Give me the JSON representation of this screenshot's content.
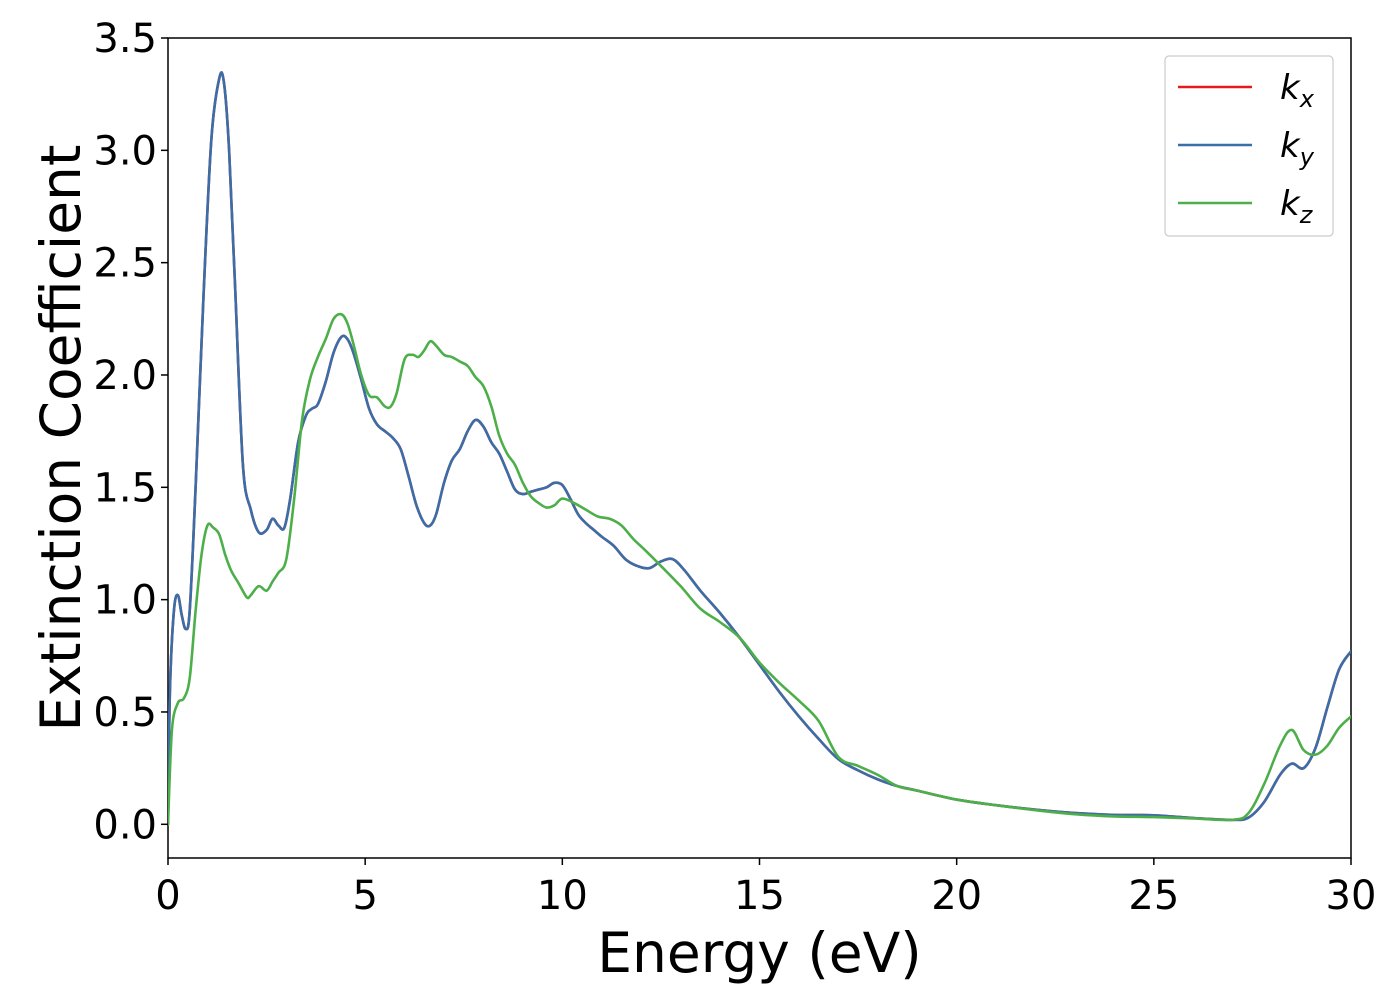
{
  "chart_data": {
    "type": "line",
    "title": "",
    "xlabel": "Energy (eV)",
    "ylabel": "Extinction Coefficient",
    "xlim": [
      0,
      30
    ],
    "ylim": [
      -0.15,
      3.5
    ],
    "xticks": [
      0,
      5,
      10,
      15,
      20,
      25,
      30
    ],
    "xtick_labels": [
      "0",
      "5",
      "10",
      "15",
      "20",
      "25",
      "30"
    ],
    "yticks": [
      0.0,
      0.5,
      1.0,
      1.5,
      2.0,
      2.5,
      3.0,
      3.5
    ],
    "ytick_labels": [
      "0.0",
      "0.5",
      "1.0",
      "1.5",
      "2.0",
      "2.5",
      "3.0",
      "3.5"
    ],
    "grid": false,
    "legend_position": "top-right",
    "series": [
      {
        "name": "k_x",
        "legend_main": "k",
        "legend_sub": "x",
        "color": "#e41a1c",
        "x": [
          0,
          0.05,
          0.15,
          0.25,
          0.35,
          0.45,
          0.55,
          0.7,
          0.9,
          1.1,
          1.3,
          1.42,
          1.55,
          1.7,
          1.9,
          2.1,
          2.3,
          2.5,
          2.65,
          2.8,
          2.95,
          3.1,
          3.3,
          3.5,
          3.65,
          3.8,
          4.0,
          4.2,
          4.4,
          4.55,
          4.7,
          4.9,
          5.1,
          5.3,
          5.5,
          5.7,
          5.9,
          6.1,
          6.3,
          6.5,
          6.65,
          6.8,
          7.0,
          7.2,
          7.4,
          7.6,
          7.8,
          8.0,
          8.2,
          8.4,
          8.6,
          8.8,
          9.0,
          9.2,
          9.4,
          9.6,
          9.8,
          10.0,
          10.2,
          10.4,
          10.6,
          10.8,
          11.0,
          11.3,
          11.6,
          11.9,
          12.2,
          12.5,
          12.8,
          13.1,
          13.5,
          14.0,
          14.5,
          15.0,
          15.5,
          16.0,
          16.5,
          17.0,
          17.5,
          18.0,
          18.5,
          19.0,
          20.0,
          21.0,
          22.0,
          23.0,
          24.0,
          25.0,
          26.0,
          27.0,
          27.4,
          27.8,
          28.2,
          28.5,
          28.8,
          29.1,
          29.4,
          29.7,
          30.0
        ],
        "values": [
          0.0,
          0.6,
          0.95,
          1.02,
          0.93,
          0.87,
          0.95,
          1.5,
          2.35,
          3.05,
          3.32,
          3.3,
          3.0,
          2.4,
          1.6,
          1.4,
          1.3,
          1.31,
          1.36,
          1.33,
          1.32,
          1.45,
          1.7,
          1.82,
          1.85,
          1.87,
          1.97,
          2.1,
          2.17,
          2.16,
          2.1,
          1.98,
          1.85,
          1.78,
          1.75,
          1.72,
          1.67,
          1.55,
          1.42,
          1.34,
          1.33,
          1.38,
          1.52,
          1.62,
          1.67,
          1.75,
          1.8,
          1.77,
          1.7,
          1.65,
          1.57,
          1.49,
          1.47,
          1.48,
          1.49,
          1.5,
          1.52,
          1.51,
          1.45,
          1.38,
          1.34,
          1.31,
          1.28,
          1.24,
          1.18,
          1.15,
          1.14,
          1.17,
          1.18,
          1.13,
          1.04,
          0.94,
          0.83,
          0.71,
          0.59,
          0.48,
          0.38,
          0.29,
          0.24,
          0.2,
          0.17,
          0.15,
          0.11,
          0.085,
          0.065,
          0.05,
          0.042,
          0.04,
          0.028,
          0.02,
          0.03,
          0.1,
          0.22,
          0.27,
          0.25,
          0.34,
          0.52,
          0.69,
          0.77
        ]
      },
      {
        "name": "k_y",
        "legend_main": "k",
        "legend_sub": "y",
        "color": "#3a6ea8",
        "x": [
          0,
          0.05,
          0.15,
          0.25,
          0.35,
          0.45,
          0.55,
          0.7,
          0.9,
          1.1,
          1.3,
          1.42,
          1.55,
          1.7,
          1.9,
          2.1,
          2.3,
          2.5,
          2.65,
          2.8,
          2.95,
          3.1,
          3.3,
          3.5,
          3.65,
          3.8,
          4.0,
          4.2,
          4.4,
          4.55,
          4.7,
          4.9,
          5.1,
          5.3,
          5.5,
          5.7,
          5.9,
          6.1,
          6.3,
          6.5,
          6.65,
          6.8,
          7.0,
          7.2,
          7.4,
          7.6,
          7.8,
          8.0,
          8.2,
          8.4,
          8.6,
          8.8,
          9.0,
          9.2,
          9.4,
          9.6,
          9.8,
          10.0,
          10.2,
          10.4,
          10.6,
          10.8,
          11.0,
          11.3,
          11.6,
          11.9,
          12.2,
          12.5,
          12.8,
          13.1,
          13.5,
          14.0,
          14.5,
          15.0,
          15.5,
          16.0,
          16.5,
          17.0,
          17.5,
          18.0,
          18.5,
          19.0,
          20.0,
          21.0,
          22.0,
          23.0,
          24.0,
          25.0,
          26.0,
          27.0,
          27.4,
          27.8,
          28.2,
          28.5,
          28.8,
          29.1,
          29.4,
          29.7,
          30.0
        ],
        "values": [
          0.0,
          0.6,
          0.95,
          1.02,
          0.93,
          0.87,
          0.95,
          1.5,
          2.35,
          3.05,
          3.32,
          3.3,
          3.0,
          2.4,
          1.6,
          1.4,
          1.3,
          1.31,
          1.36,
          1.33,
          1.32,
          1.45,
          1.7,
          1.82,
          1.85,
          1.87,
          1.97,
          2.1,
          2.17,
          2.16,
          2.1,
          1.98,
          1.85,
          1.78,
          1.75,
          1.72,
          1.67,
          1.55,
          1.42,
          1.34,
          1.33,
          1.38,
          1.52,
          1.62,
          1.67,
          1.75,
          1.8,
          1.77,
          1.7,
          1.65,
          1.57,
          1.49,
          1.47,
          1.48,
          1.49,
          1.5,
          1.52,
          1.51,
          1.45,
          1.38,
          1.34,
          1.31,
          1.28,
          1.24,
          1.18,
          1.15,
          1.14,
          1.17,
          1.18,
          1.13,
          1.04,
          0.94,
          0.83,
          0.71,
          0.59,
          0.48,
          0.38,
          0.29,
          0.24,
          0.2,
          0.17,
          0.15,
          0.11,
          0.085,
          0.065,
          0.05,
          0.042,
          0.04,
          0.028,
          0.02,
          0.03,
          0.1,
          0.22,
          0.27,
          0.25,
          0.34,
          0.52,
          0.69,
          0.77
        ]
      },
      {
        "name": "k_z",
        "legend_main": "k",
        "legend_sub": "z",
        "color": "#4daf4a",
        "x": [
          0,
          0.1,
          0.25,
          0.4,
          0.55,
          0.7,
          0.85,
          1.0,
          1.15,
          1.3,
          1.45,
          1.6,
          1.8,
          2.0,
          2.1,
          2.3,
          2.5,
          2.65,
          2.8,
          3.0,
          3.2,
          3.4,
          3.6,
          3.8,
          4.0,
          4.2,
          4.4,
          4.55,
          4.7,
          4.9,
          5.1,
          5.3,
          5.5,
          5.65,
          5.8,
          6.0,
          6.2,
          6.35,
          6.5,
          6.65,
          6.8,
          7.0,
          7.2,
          7.4,
          7.6,
          7.8,
          8.0,
          8.2,
          8.4,
          8.6,
          8.8,
          9.0,
          9.2,
          9.4,
          9.6,
          9.8,
          10.0,
          10.3,
          10.6,
          10.9,
          11.2,
          11.5,
          11.8,
          12.1,
          12.5,
          13.0,
          13.5,
          14.0,
          14.5,
          15.0,
          15.5,
          16.0,
          16.5,
          17.0,
          17.5,
          18.0,
          18.5,
          19.0,
          20.0,
          21.0,
          22.0,
          23.0,
          24.0,
          25.0,
          26.0,
          27.0,
          27.4,
          27.8,
          28.2,
          28.5,
          28.8,
          29.1,
          29.4,
          29.7,
          30.0
        ],
        "values": [
          0.0,
          0.42,
          0.54,
          0.56,
          0.65,
          0.95,
          1.2,
          1.33,
          1.32,
          1.29,
          1.2,
          1.13,
          1.07,
          1.01,
          1.02,
          1.06,
          1.04,
          1.08,
          1.12,
          1.18,
          1.45,
          1.8,
          1.98,
          2.08,
          2.16,
          2.25,
          2.27,
          2.23,
          2.14,
          2.0,
          1.91,
          1.9,
          1.86,
          1.86,
          1.92,
          2.07,
          2.09,
          2.08,
          2.11,
          2.15,
          2.13,
          2.09,
          2.08,
          2.06,
          2.04,
          1.99,
          1.95,
          1.86,
          1.73,
          1.65,
          1.6,
          1.52,
          1.46,
          1.43,
          1.41,
          1.42,
          1.45,
          1.43,
          1.4,
          1.37,
          1.36,
          1.33,
          1.27,
          1.22,
          1.15,
          1.06,
          0.96,
          0.9,
          0.83,
          0.72,
          0.63,
          0.55,
          0.46,
          0.3,
          0.26,
          0.22,
          0.17,
          0.15,
          0.11,
          0.085,
          0.063,
          0.045,
          0.035,
          0.032,
          0.026,
          0.02,
          0.05,
          0.18,
          0.35,
          0.42,
          0.33,
          0.31,
          0.35,
          0.43,
          0.48
        ]
      }
    ]
  }
}
